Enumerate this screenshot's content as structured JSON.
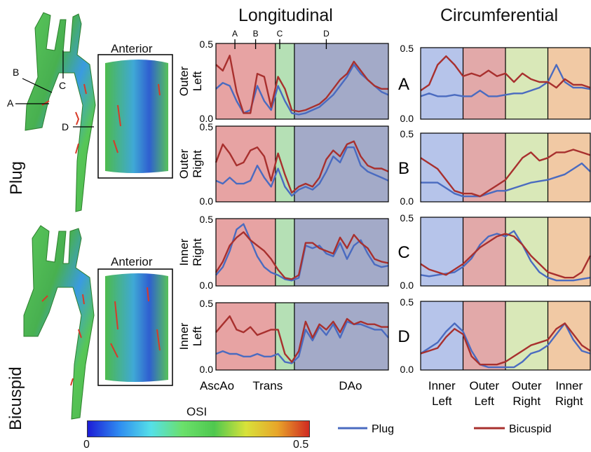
{
  "titles": {
    "longitudinal": "Longitudinal",
    "circumferential": "Circumferential"
  },
  "models": {
    "plug": {
      "label": "Plug",
      "inset": "Anterior",
      "cuts": [
        "A",
        "B",
        "C",
        "D"
      ]
    },
    "bicuspid": {
      "label": "Bicuspid",
      "inset": "Anterior"
    }
  },
  "colorbar": {
    "title": "OSI",
    "min": "0",
    "max": "0.5",
    "stops": [
      "#1c1cd6",
      "#2f8cf0",
      "#55e0e8",
      "#6be06b",
      "#4fc84f",
      "#d8e23a",
      "#e8a52a",
      "#d02a22"
    ]
  },
  "colors": {
    "plug": "#4a6bc0",
    "bicuspid": "#a8302e",
    "asc": "#e7a3a3",
    "trans": "#b5e0b5",
    "dao": "#a3aac8",
    "innerLeft": "#b6c4ea",
    "outerLeft": "#e2a9a9",
    "outerRight": "#d9e8b8",
    "innerRight": "#f1c9a4"
  },
  "long_ticks": {
    "top": "0.5",
    "bottom": "0.0"
  },
  "circ_ticks": {
    "top": "0.5",
    "bottom": "0.0"
  },
  "long_markers": [
    "A",
    "B",
    "C",
    "D"
  ],
  "long_regions": [
    "AscAo",
    "Trans",
    "DAo"
  ],
  "circ_regions": [
    "Inner\nLeft",
    "Outer\nLeft",
    "Outer\nRight",
    "Inner\nRight"
  ],
  "long_rows": [
    "Outer\nLeft",
    "Outer\nRight",
    "Inner\nRight",
    "Inner\nLeft"
  ],
  "circ_rows": [
    "A",
    "B",
    "C",
    "D"
  ],
  "legend": {
    "plug": "Plug",
    "bicuspid": "Bicuspid"
  },
  "chart_data": [
    {
      "type": "line",
      "panel": "Longitudinal – Outer Left",
      "ylim": [
        0,
        0.5
      ],
      "x": [
        0,
        0.04,
        0.08,
        0.12,
        0.16,
        0.2,
        0.24,
        0.28,
        0.32,
        0.36,
        0.4,
        0.44,
        0.48,
        0.52,
        0.56,
        0.6,
        0.64,
        0.68,
        0.72,
        0.76,
        0.8,
        0.84,
        0.88,
        0.92,
        0.96,
        1.0
      ],
      "series": [
        {
          "name": "Plug",
          "values": [
            0.2,
            0.24,
            0.22,
            0.12,
            0.04,
            0.06,
            0.22,
            0.12,
            0.06,
            0.22,
            0.12,
            0.04,
            0.03,
            0.04,
            0.06,
            0.08,
            0.12,
            0.16,
            0.22,
            0.28,
            0.36,
            0.3,
            0.26,
            0.22,
            0.18,
            0.16
          ]
        },
        {
          "name": "Bicuspid",
          "values": [
            0.36,
            0.32,
            0.42,
            0.18,
            0.04,
            0.04,
            0.3,
            0.28,
            0.08,
            0.28,
            0.2,
            0.06,
            0.05,
            0.06,
            0.08,
            0.1,
            0.14,
            0.2,
            0.26,
            0.3,
            0.38,
            0.32,
            0.26,
            0.22,
            0.2,
            0.2
          ]
        }
      ]
    },
    {
      "type": "line",
      "panel": "Longitudinal – Outer Right",
      "ylim": [
        0,
        0.5
      ],
      "x": [
        0,
        0.04,
        0.08,
        0.12,
        0.16,
        0.2,
        0.24,
        0.28,
        0.32,
        0.36,
        0.4,
        0.44,
        0.48,
        0.52,
        0.56,
        0.6,
        0.64,
        0.68,
        0.72,
        0.76,
        0.8,
        0.84,
        0.88,
        0.92,
        0.96,
        1.0
      ],
      "series": [
        {
          "name": "Plug",
          "values": [
            0.14,
            0.12,
            0.16,
            0.12,
            0.12,
            0.14,
            0.24,
            0.16,
            0.1,
            0.22,
            0.1,
            0.04,
            0.08,
            0.1,
            0.08,
            0.12,
            0.2,
            0.3,
            0.26,
            0.36,
            0.36,
            0.24,
            0.2,
            0.18,
            0.16,
            0.14
          ]
        },
        {
          "name": "Bicuspid",
          "values": [
            0.26,
            0.38,
            0.32,
            0.24,
            0.26,
            0.34,
            0.36,
            0.3,
            0.14,
            0.32,
            0.18,
            0.06,
            0.1,
            0.12,
            0.1,
            0.16,
            0.28,
            0.34,
            0.3,
            0.38,
            0.4,
            0.3,
            0.24,
            0.22,
            0.22,
            0.2
          ]
        }
      ]
    },
    {
      "type": "line",
      "panel": "Longitudinal – Inner Right",
      "ylim": [
        0,
        0.5
      ],
      "x": [
        0,
        0.04,
        0.08,
        0.12,
        0.16,
        0.2,
        0.24,
        0.28,
        0.32,
        0.36,
        0.4,
        0.44,
        0.48,
        0.52,
        0.56,
        0.6,
        0.64,
        0.68,
        0.72,
        0.76,
        0.8,
        0.84,
        0.88,
        0.92,
        0.96,
        1.0
      ],
      "series": [
        {
          "name": "Plug",
          "values": [
            0.08,
            0.14,
            0.26,
            0.42,
            0.46,
            0.34,
            0.22,
            0.14,
            0.1,
            0.08,
            0.05,
            0.04,
            0.06,
            0.3,
            0.28,
            0.3,
            0.24,
            0.22,
            0.32,
            0.2,
            0.3,
            0.34,
            0.24,
            0.16,
            0.14,
            0.15
          ]
        },
        {
          "name": "Bicuspid",
          "values": [
            0.1,
            0.18,
            0.3,
            0.36,
            0.4,
            0.34,
            0.3,
            0.26,
            0.2,
            0.12,
            0.06,
            0.05,
            0.08,
            0.32,
            0.32,
            0.28,
            0.26,
            0.24,
            0.36,
            0.28,
            0.38,
            0.32,
            0.28,
            0.2,
            0.18,
            0.17
          ]
        }
      ]
    },
    {
      "type": "line",
      "panel": "Longitudinal – Inner Left",
      "ylim": [
        0,
        0.5
      ],
      "x": [
        0,
        0.04,
        0.08,
        0.12,
        0.16,
        0.2,
        0.24,
        0.28,
        0.32,
        0.36,
        0.4,
        0.44,
        0.48,
        0.52,
        0.56,
        0.6,
        0.64,
        0.68,
        0.72,
        0.76,
        0.8,
        0.84,
        0.88,
        0.92,
        0.96,
        1.0
      ],
      "series": [
        {
          "name": "Plug",
          "values": [
            0.12,
            0.14,
            0.12,
            0.12,
            0.1,
            0.1,
            0.12,
            0.1,
            0.1,
            0.12,
            0.06,
            0.05,
            0.1,
            0.3,
            0.22,
            0.32,
            0.26,
            0.34,
            0.24,
            0.36,
            0.34,
            0.34,
            0.32,
            0.3,
            0.3,
            0.24
          ]
        },
        {
          "name": "Bicuspid",
          "values": [
            0.28,
            0.34,
            0.4,
            0.3,
            0.28,
            0.32,
            0.26,
            0.28,
            0.3,
            0.3,
            0.12,
            0.06,
            0.14,
            0.36,
            0.24,
            0.34,
            0.3,
            0.36,
            0.28,
            0.38,
            0.34,
            0.36,
            0.34,
            0.34,
            0.32,
            0.32
          ]
        }
      ]
    },
    {
      "type": "line",
      "panel": "Circumferential – A",
      "ylim": [
        0,
        0.5
      ],
      "x": [
        0,
        0.05,
        0.1,
        0.15,
        0.2,
        0.25,
        0.3,
        0.35,
        0.4,
        0.45,
        0.5,
        0.55,
        0.6,
        0.65,
        0.7,
        0.75,
        0.8,
        0.85,
        0.9,
        0.95,
        1.0
      ],
      "series": [
        {
          "name": "Plug",
          "values": [
            0.16,
            0.18,
            0.16,
            0.16,
            0.17,
            0.16,
            0.16,
            0.2,
            0.16,
            0.16,
            0.17,
            0.18,
            0.18,
            0.2,
            0.22,
            0.26,
            0.38,
            0.26,
            0.22,
            0.22,
            0.21
          ]
        },
        {
          "name": "Bicuspid",
          "values": [
            0.2,
            0.24,
            0.38,
            0.44,
            0.38,
            0.3,
            0.32,
            0.3,
            0.34,
            0.3,
            0.32,
            0.26,
            0.32,
            0.28,
            0.26,
            0.26,
            0.22,
            0.28,
            0.24,
            0.24,
            0.22
          ]
        }
      ]
    },
    {
      "type": "line",
      "panel": "Circumferential – B",
      "ylim": [
        0,
        0.5
      ],
      "x": [
        0,
        0.05,
        0.1,
        0.15,
        0.2,
        0.25,
        0.3,
        0.35,
        0.4,
        0.45,
        0.5,
        0.55,
        0.6,
        0.65,
        0.7,
        0.75,
        0.8,
        0.85,
        0.9,
        0.95,
        1.0
      ],
      "series": [
        {
          "name": "Plug",
          "values": [
            0.14,
            0.14,
            0.14,
            0.1,
            0.06,
            0.04,
            0.04,
            0.04,
            0.06,
            0.08,
            0.08,
            0.1,
            0.12,
            0.14,
            0.15,
            0.16,
            0.18,
            0.2,
            0.24,
            0.28,
            0.22
          ]
        },
        {
          "name": "Bicuspid",
          "values": [
            0.32,
            0.28,
            0.24,
            0.16,
            0.08,
            0.06,
            0.06,
            0.04,
            0.08,
            0.12,
            0.16,
            0.24,
            0.32,
            0.36,
            0.3,
            0.32,
            0.36,
            0.36,
            0.38,
            0.36,
            0.34
          ]
        }
      ]
    },
    {
      "type": "line",
      "panel": "Circumferential – C",
      "ylim": [
        0,
        0.5
      ],
      "x": [
        0,
        0.05,
        0.1,
        0.15,
        0.2,
        0.25,
        0.3,
        0.35,
        0.4,
        0.45,
        0.5,
        0.55,
        0.6,
        0.65,
        0.7,
        0.75,
        0.8,
        0.85,
        0.9,
        0.95,
        1.0
      ],
      "series": [
        {
          "name": "Plug",
          "values": [
            0.08,
            0.07,
            0.08,
            0.09,
            0.1,
            0.14,
            0.2,
            0.3,
            0.36,
            0.38,
            0.36,
            0.4,
            0.3,
            0.18,
            0.1,
            0.06,
            0.04,
            0.04,
            0.04,
            0.05,
            0.06
          ]
        },
        {
          "name": "Bicuspid",
          "values": [
            0.16,
            0.12,
            0.1,
            0.08,
            0.12,
            0.16,
            0.22,
            0.28,
            0.32,
            0.36,
            0.38,
            0.36,
            0.3,
            0.22,
            0.16,
            0.1,
            0.08,
            0.06,
            0.06,
            0.1,
            0.22
          ]
        }
      ]
    },
    {
      "type": "line",
      "panel": "Circumferential – D",
      "ylim": [
        0,
        0.5
      ],
      "x": [
        0,
        0.05,
        0.1,
        0.15,
        0.2,
        0.25,
        0.3,
        0.35,
        0.4,
        0.45,
        0.5,
        0.55,
        0.6,
        0.65,
        0.7,
        0.75,
        0.8,
        0.85,
        0.9,
        0.95,
        1.0
      ],
      "series": [
        {
          "name": "Plug",
          "values": [
            0.12,
            0.16,
            0.2,
            0.28,
            0.34,
            0.28,
            0.14,
            0.04,
            0.02,
            0.02,
            0.02,
            0.02,
            0.06,
            0.12,
            0.14,
            0.18,
            0.26,
            0.34,
            0.22,
            0.14,
            0.12
          ]
        },
        {
          "name": "Bicuspid",
          "values": [
            0.12,
            0.14,
            0.16,
            0.24,
            0.3,
            0.26,
            0.1,
            0.04,
            0.04,
            0.04,
            0.06,
            0.1,
            0.14,
            0.18,
            0.2,
            0.22,
            0.3,
            0.34,
            0.26,
            0.18,
            0.14
          ]
        }
      ]
    }
  ]
}
